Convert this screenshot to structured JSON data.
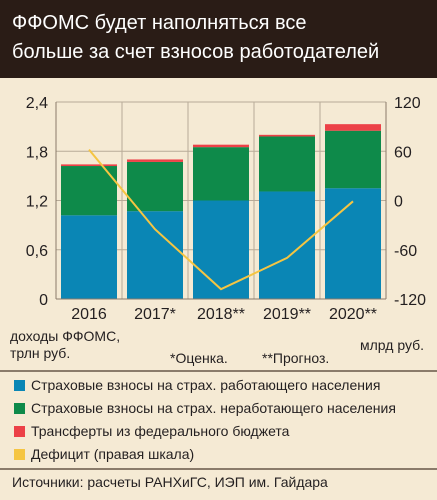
{
  "title": {
    "line1": "ФФОМС будет наполняться все",
    "line2": "больше за счет взносов работодателей"
  },
  "notes": {
    "left_axis_unit": [
      "доходы ФФОМС,",
      "трлн руб."
    ],
    "right_axis_unit": "млрд руб.",
    "estimate": "*Оценка.",
    "forecast": "**Прогноз."
  },
  "legend": [
    {
      "label": "Страховые взносы на страх. работающего населения",
      "color": "#0a86b5"
    },
    {
      "label": "Страховые взносы на страх. неработающего населения",
      "color": "#0e8a4a"
    },
    {
      "label": "Трансферты из федерального бюджета",
      "color": "#ec4147"
    },
    {
      "label": "Дефицит (правая шкала)",
      "color": "#f5c542"
    }
  ],
  "source": "Источники: расчеты РАНХиГС, ИЭП им. Гайдара",
  "chart_data": {
    "type": "bar",
    "categories": [
      "2016",
      "2017*",
      "2018**",
      "2019**",
      "2020**"
    ],
    "series": [
      {
        "name": "Страховые взносы на страх. работающего населения",
        "type": "bar",
        "axis": "left",
        "color": "#0a86b5",
        "values": [
          1.02,
          1.07,
          1.2,
          1.31,
          1.35
        ]
      },
      {
        "name": "Страховые взносы на страх. неработающего населения",
        "type": "bar",
        "axis": "left",
        "color": "#0e8a4a",
        "values": [
          0.6,
          0.6,
          0.65,
          0.67,
          0.7
        ]
      },
      {
        "name": "Трансферты из федерального бюджета",
        "type": "bar",
        "axis": "left",
        "color": "#ec4147",
        "values": [
          0.02,
          0.03,
          0.03,
          0.02,
          0.08
        ]
      },
      {
        "name": "Дефицит (правая шкала)",
        "type": "line",
        "axis": "right",
        "color": "#f5c542",
        "values": [
          62,
          -35,
          -108,
          -70,
          -1
        ]
      }
    ],
    "y_left": {
      "ticks": [
        "0",
        "0,6",
        "1,2",
        "1,8",
        "2,4"
      ],
      "values": [
        0,
        0.6,
        1.2,
        1.8,
        2.4
      ],
      "ylim": [
        0,
        2.4
      ]
    },
    "y_right": {
      "ticks": [
        "-120",
        "-60",
        "0",
        "60",
        "120"
      ],
      "values": [
        -120,
        -60,
        0,
        60,
        120
      ],
      "ylim": [
        -120,
        120
      ]
    },
    "grid": true,
    "stacked": true,
    "legend_position": "bottom"
  }
}
